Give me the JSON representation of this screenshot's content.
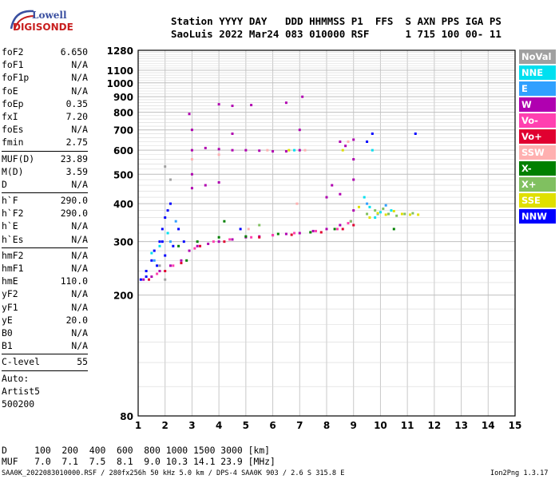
{
  "logo": {
    "line1": "Lowell",
    "line2": "DIGISONDE"
  },
  "header": {
    "line1": "Station YYYY DAY   DDD HHMMSS P1  FFS  S AXN PPS IGA PS",
    "line2": "SaoLuis 2022 Mar24 083 010000 RSF      1 715 100 00- 11"
  },
  "params": [
    [
      [
        "foF2",
        "6.650"
      ],
      [
        "foF1",
        "N/A"
      ],
      [
        "foF1p",
        "N/A"
      ],
      [
        "foE",
        "N/A"
      ],
      [
        "foEp",
        "0.35"
      ],
      [
        "fxI",
        "7.20"
      ],
      [
        "foEs",
        "N/A"
      ],
      [
        "fmin",
        "2.75"
      ]
    ],
    [
      [
        "MUF(D)",
        "23.89"
      ],
      [
        "M(D)",
        "3.59"
      ],
      [
        "D",
        "N/A"
      ]
    ],
    [
      [
        "h`F",
        "290.0"
      ],
      [
        "h`F2",
        "290.0"
      ],
      [
        "h`E",
        "N/A"
      ],
      [
        "h`Es",
        "N/A"
      ]
    ],
    [
      [
        "hmF2",
        "N/A"
      ],
      [
        "hmF1",
        "N/A"
      ],
      [
        "hmE",
        "110.0"
      ],
      [
        "yF2",
        "N/A"
      ],
      [
        "yF1",
        "N/A"
      ],
      [
        "yE",
        "20.0"
      ],
      [
        "B0",
        "N/A"
      ],
      [
        "B1",
        "N/A"
      ]
    ],
    [
      [
        "C-level",
        "55"
      ]
    ],
    [
      [
        "Auto:",
        ""
      ],
      [
        "Artist5",
        ""
      ],
      [
        "500200",
        ""
      ]
    ]
  ],
  "bottom": {
    "d_line": "D     100  200  400  600  800 1000 1500 3000 [km]",
    "muf_line": "MUF   7.0  7.1  7.5  8.1  9.0 10.3 14.1 23.9 [MHz]"
  },
  "footer": {
    "left": "SAA0K_2022083010000.RSF / 280fx256h 50 kHz 5.0 km / DPS-4 SAA0K 903 / 2.6 S 315.8 E",
    "right": "Ion2Png 1.3.17"
  },
  "legend": [
    {
      "label": "NoVal",
      "color": "#a0a0a0"
    },
    {
      "label": "NNE",
      "color": "#00e0f0"
    },
    {
      "label": "E",
      "color": "#30a0ff"
    },
    {
      "label": "W",
      "color": "#b000b0"
    },
    {
      "label": "Vo-",
      "color": "#ff40b0"
    },
    {
      "label": "Vo+",
      "color": "#e00030"
    },
    {
      "label": "SSW",
      "color": "#ffb0b0"
    },
    {
      "label": "X-",
      "color": "#008000"
    },
    {
      "label": "X+",
      "color": "#80c060"
    },
    {
      "label": "SSE",
      "color": "#e0e000"
    },
    {
      "label": "NNW",
      "color": "#0000ff"
    }
  ],
  "chart_data": {
    "type": "scatter",
    "title": "",
    "xlabel": "",
    "ylabel": "",
    "xlim": [
      1,
      15
    ],
    "ylim": [
      80,
      1280
    ],
    "y_scale": "log",
    "x_ticks": [
      1,
      2,
      3,
      4,
      5,
      6,
      7,
      8,
      9,
      10,
      11,
      12,
      13,
      14,
      15
    ],
    "y_ticks": [
      80,
      200,
      300,
      400,
      500,
      600,
      700,
      800,
      900,
      1000,
      1100,
      1280
    ],
    "grid": true,
    "legend_position": "right",
    "series": [
      {
        "name": "W",
        "color": "#b000b0",
        "points": [
          [
            1.2,
            225
          ],
          [
            1.5,
            230
          ],
          [
            1.8,
            240
          ],
          [
            2.2,
            250
          ],
          [
            2.6,
            260
          ],
          [
            2.9,
            280
          ],
          [
            3.2,
            290
          ],
          [
            3.6,
            295
          ],
          [
            4.0,
            300
          ],
          [
            4.5,
            305
          ],
          [
            5.0,
            310
          ],
          [
            5.5,
            312
          ],
          [
            6.0,
            315
          ],
          [
            6.5,
            318
          ],
          [
            7.0,
            320
          ],
          [
            7.5,
            325
          ],
          [
            8.0,
            330
          ],
          [
            8.5,
            340
          ],
          [
            8.9,
            350
          ],
          [
            9.0,
            380
          ],
          [
            3.0,
            600
          ],
          [
            3.5,
            610
          ],
          [
            4.0,
            605
          ],
          [
            4.5,
            600
          ],
          [
            5.0,
            600
          ],
          [
            5.5,
            598
          ],
          [
            6.0,
            595
          ],
          [
            6.5,
            595
          ],
          [
            7.0,
            600
          ],
          [
            8.7,
            620
          ],
          [
            3.0,
            700
          ],
          [
            4.5,
            680
          ],
          [
            7.0,
            700
          ],
          [
            8.5,
            640
          ],
          [
            4.0,
            850
          ],
          [
            4.5,
            840
          ],
          [
            5.2,
            845
          ],
          [
            6.5,
            860
          ],
          [
            7.1,
            900
          ],
          [
            2.9,
            790
          ],
          [
            3.0,
            450
          ],
          [
            3.0,
            500
          ],
          [
            3.5,
            460
          ],
          [
            4.0,
            470
          ],
          [
            8.0,
            420
          ],
          [
            8.2,
            460
          ],
          [
            8.5,
            430
          ],
          [
            9.0,
            480
          ],
          [
            9.0,
            560
          ],
          [
            9.0,
            650
          ]
        ]
      },
      {
        "name": "Vo-",
        "color": "#ff40b0",
        "points": [
          [
            1.7,
            235
          ],
          [
            2.3,
            250
          ],
          [
            3.1,
            285
          ],
          [
            3.8,
            300
          ],
          [
            4.4,
            305
          ],
          [
            5.2,
            310
          ],
          [
            6.0,
            315
          ],
          [
            6.8,
            320
          ],
          [
            7.6,
            325
          ],
          [
            8.4,
            330
          ],
          [
            8.8,
            345
          ]
        ]
      },
      {
        "name": "Vo+",
        "color": "#e00030",
        "points": [
          [
            1.4,
            225
          ],
          [
            2.0,
            240
          ],
          [
            2.6,
            255
          ],
          [
            3.3,
            290
          ],
          [
            4.2,
            300
          ],
          [
            5.5,
            310
          ],
          [
            6.7,
            316
          ],
          [
            7.8,
            322
          ],
          [
            8.6,
            330
          ],
          [
            9.0,
            340
          ]
        ]
      },
      {
        "name": "NNW",
        "color": "#0000ff",
        "points": [
          [
            1.1,
            225
          ],
          [
            1.3,
            230
          ],
          [
            1.5,
            260
          ],
          [
            1.6,
            280
          ],
          [
            1.8,
            300
          ],
          [
            1.9,
            330
          ],
          [
            2.0,
            360
          ],
          [
            2.1,
            380
          ],
          [
            2.2,
            400
          ],
          [
            2.3,
            290
          ],
          [
            2.0,
            270
          ],
          [
            1.7,
            250
          ],
          [
            2.5,
            330
          ],
          [
            2.7,
            300
          ],
          [
            9.7,
            680
          ],
          [
            9.5,
            640
          ],
          [
            11.3,
            680
          ],
          [
            4.8,
            330
          ],
          [
            1.3,
            240
          ],
          [
            1.9,
            300
          ]
        ]
      },
      {
        "name": "NNE",
        "color": "#00e0f0",
        "points": [
          [
            1.5,
            275
          ],
          [
            1.8,
            290
          ],
          [
            2.1,
            320
          ],
          [
            9.6,
            390
          ],
          [
            10.0,
            375
          ],
          [
            10.4,
            380
          ],
          [
            9.8,
            360
          ],
          [
            9.4,
            420
          ],
          [
            9.7,
            600
          ],
          [
            6.8,
            600
          ]
        ]
      },
      {
        "name": "E",
        "color": "#30a0ff",
        "points": [
          [
            1.6,
            260
          ],
          [
            2.2,
            300
          ],
          [
            2.4,
            350
          ],
          [
            9.9,
            370
          ],
          [
            10.2,
            395
          ],
          [
            9.5,
            400
          ]
        ]
      },
      {
        "name": "X-",
        "color": "#008000",
        "points": [
          [
            2.5,
            290
          ],
          [
            3.2,
            300
          ],
          [
            4.0,
            310
          ],
          [
            5.0,
            312
          ],
          [
            6.2,
            318
          ],
          [
            7.4,
            322
          ],
          [
            8.3,
            330
          ],
          [
            2.8,
            260
          ],
          [
            10.5,
            330
          ],
          [
            4.2,
            350
          ]
        ]
      },
      {
        "name": "X+",
        "color": "#80c060",
        "points": [
          [
            9.5,
            370
          ],
          [
            9.8,
            380
          ],
          [
            10.1,
            385
          ],
          [
            10.3,
            370
          ],
          [
            10.6,
            365
          ],
          [
            10.9,
            370
          ],
          [
            11.2,
            372
          ],
          [
            8.9,
            350
          ],
          [
            5.5,
            340
          ]
        ]
      },
      {
        "name": "SSE",
        "color": "#e0e000",
        "points": [
          [
            9.6,
            360
          ],
          [
            9.9,
            372
          ],
          [
            10.2,
            368
          ],
          [
            10.5,
            378
          ],
          [
            10.8,
            370
          ],
          [
            11.1,
            368
          ],
          [
            11.4,
            368
          ],
          [
            8.6,
            600
          ],
          [
            6.6,
            600
          ],
          [
            9.2,
            390
          ]
        ]
      },
      {
        "name": "SSW",
        "color": "#ffb0b0",
        "points": [
          [
            3.0,
            560
          ],
          [
            4.0,
            580
          ],
          [
            5.8,
            600
          ],
          [
            7.2,
            600
          ],
          [
            8.8,
            640
          ],
          [
            5.1,
            330
          ],
          [
            6.9,
            400
          ]
        ]
      },
      {
        "name": "NoVal",
        "color": "#a0a0a0",
        "points": [
          [
            2.0,
            530
          ],
          [
            2.2,
            480
          ],
          [
            1.8,
            250
          ],
          [
            2.0,
            225
          ]
        ]
      }
    ]
  }
}
